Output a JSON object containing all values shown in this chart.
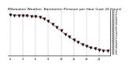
{
  "title": "Milwaukee Weather  Barometric Pressure per Hour (Last 24 Hours)",
  "hours": [
    0,
    1,
    2,
    3,
    4,
    5,
    6,
    7,
    8,
    9,
    10,
    11,
    12,
    13,
    14,
    15,
    16,
    17,
    18,
    19,
    20,
    21,
    22,
    23
  ],
  "pressure": [
    30.12,
    30.1,
    30.09,
    30.08,
    30.07,
    30.06,
    30.04,
    30.02,
    29.95,
    29.85,
    29.72,
    29.58,
    29.44,
    29.3,
    29.18,
    29.06,
    28.96,
    28.87,
    28.79,
    28.73,
    28.68,
    28.64,
    28.61,
    28.59
  ],
  "line_color": "#cc0000",
  "marker_color": "#111111",
  "grid_color": "#999999",
  "bg_color": "#ffffff",
  "ylim": [
    28.4,
    30.3
  ],
  "xlim": [
    -0.5,
    23.5
  ],
  "title_fontsize": 3.2,
  "tick_fontsize": 2.5,
  "linewidth": 0.5,
  "markersize": 2.5,
  "grid_xticks": [
    0,
    3,
    6,
    9,
    12,
    15,
    18,
    21
  ],
  "ytick_values": [
    28.5,
    28.6,
    28.7,
    28.8,
    28.9,
    29.0,
    29.1,
    29.2,
    29.3,
    29.4,
    29.5,
    29.6,
    29.7,
    29.8,
    29.9,
    30.0,
    30.1,
    30.2,
    30.3
  ]
}
